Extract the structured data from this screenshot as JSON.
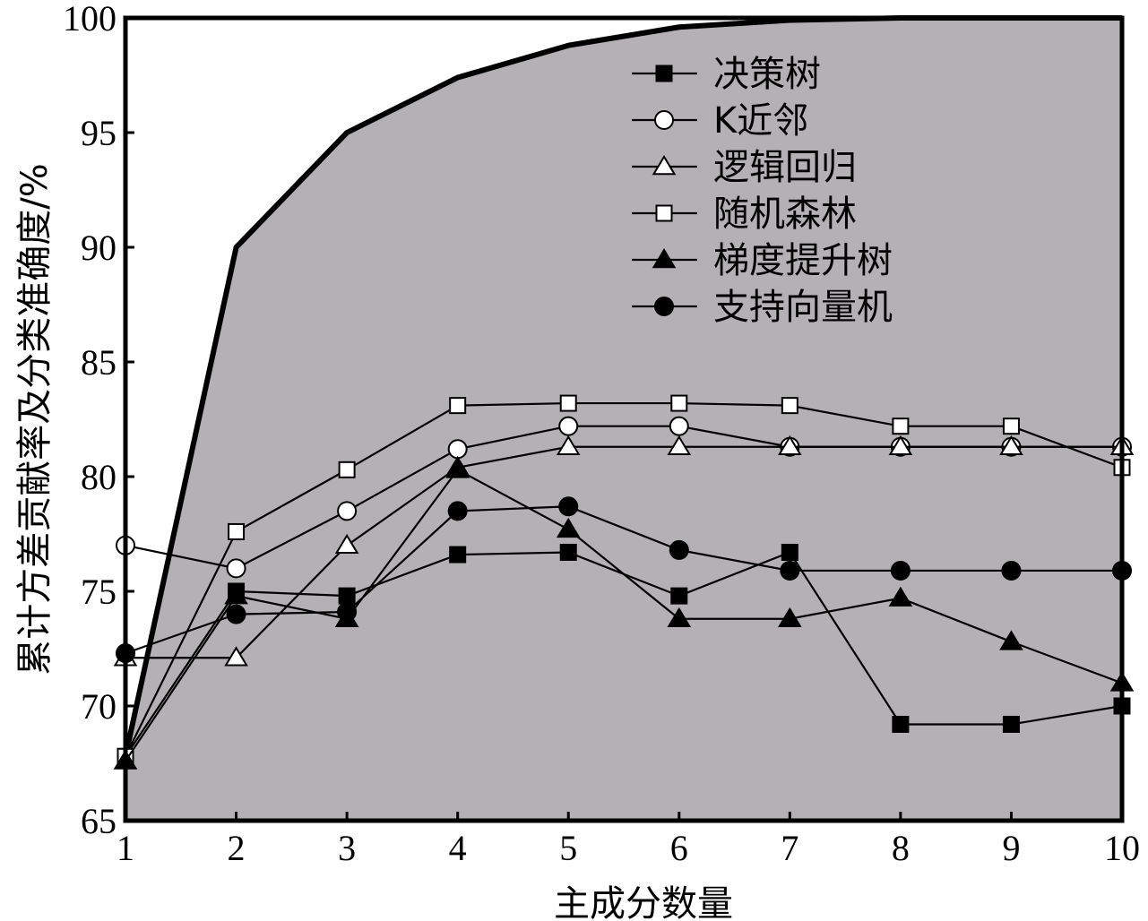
{
  "chart_data": {
    "type": "line",
    "title": "",
    "xlabel": "主成分数量",
    "ylabel": "累计方差贡献率及分类准确度/%",
    "xlim": [
      1,
      10
    ],
    "ylim": [
      65,
      100
    ],
    "x": [
      1,
      2,
      3,
      4,
      5,
      6,
      7,
      8,
      9,
      10
    ],
    "xticks": [
      "1",
      "2",
      "3",
      "4",
      "5",
      "6",
      "7",
      "8",
      "9",
      "10"
    ],
    "yticks": [
      "65",
      "70",
      "75",
      "80",
      "85",
      "90",
      "95",
      "100"
    ],
    "grid": false,
    "legend_position": "top-right",
    "background_area": {
      "values": [
        67.8,
        90.0,
        95.0,
        97.4,
        98.8,
        99.6,
        99.9,
        100.0,
        100.0,
        100.0
      ],
      "fill_color": "#b3b1b3",
      "line_color": "#000000"
    },
    "series": [
      {
        "name": "决策树",
        "marker": "square-filled",
        "values": [
          67.8,
          75.0,
          74.8,
          76.6,
          76.7,
          74.8,
          76.7,
          69.2,
          69.2,
          70.0
        ]
      },
      {
        "name": "K近邻",
        "marker": "circle-open",
        "values": [
          77.0,
          76.0,
          78.5,
          81.2,
          82.2,
          82.2,
          81.3,
          81.3,
          81.3,
          81.3
        ]
      },
      {
        "name": "逻辑回归",
        "marker": "triangle-open",
        "values": [
          72.1,
          72.1,
          77.0,
          80.4,
          81.3,
          81.3,
          81.3,
          81.3,
          81.3,
          81.3
        ]
      },
      {
        "name": "随机森林",
        "marker": "square-open",
        "values": [
          67.8,
          77.6,
          80.3,
          83.1,
          83.2,
          83.2,
          83.1,
          82.2,
          82.2,
          80.4
        ]
      },
      {
        "name": "梯度提升树",
        "marker": "triangle-filled",
        "values": [
          67.6,
          74.8,
          73.8,
          80.3,
          77.7,
          73.8,
          73.8,
          74.7,
          72.8,
          71.0
        ]
      },
      {
        "name": "支持向量机",
        "marker": "circle-filled",
        "values": [
          72.3,
          74.0,
          74.1,
          78.5,
          78.7,
          76.8,
          75.9,
          75.9,
          75.9,
          75.9
        ]
      }
    ]
  }
}
